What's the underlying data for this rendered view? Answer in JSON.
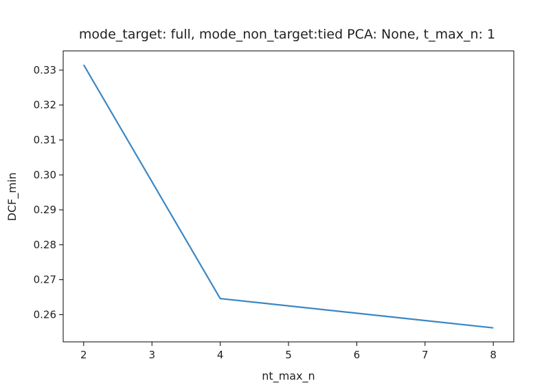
{
  "chart_data": {
    "type": "line",
    "title": "mode_target: full, mode_non_target:tied PCA: None, t_max_n: 1",
    "xlabel": "nt_max_n",
    "ylabel": "DCF_min",
    "x": [
      2,
      4,
      8
    ],
    "series": [
      {
        "values": [
          0.3315,
          0.2646,
          0.2562
        ],
        "color": "#3a86c3"
      }
    ],
    "xlim": [
      1.7,
      8.3
    ],
    "ylim": [
      0.2522,
      0.3355
    ],
    "xticks": [
      2,
      3,
      4,
      5,
      6,
      7,
      8
    ],
    "yticks": [
      0.26,
      0.27,
      0.28,
      0.29,
      0.3,
      0.31,
      0.32,
      0.33
    ],
    "xtick_labels": [
      "2",
      "3",
      "4",
      "5",
      "6",
      "7",
      "8"
    ],
    "ytick_labels": [
      "0.26",
      "0.27",
      "0.28",
      "0.29",
      "0.30",
      "0.31",
      "0.32",
      "0.33"
    ],
    "grid": false,
    "legend": false
  }
}
